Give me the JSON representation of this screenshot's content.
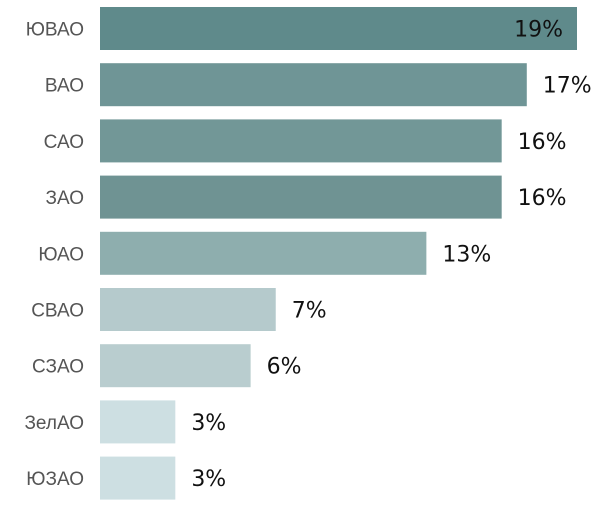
{
  "chart_data": {
    "type": "bar",
    "orientation": "horizontal",
    "categories": [
      "ЮВАО",
      "ВАО",
      "САО",
      "ЗАО",
      "ЮАО",
      "СВАО",
      "СЗАО",
      "ЗелАО",
      "ЮЗАО"
    ],
    "values": [
      19,
      17,
      16,
      16,
      13,
      7,
      6,
      3,
      3
    ],
    "value_labels": [
      "19%",
      "17%",
      "16%",
      "16%",
      "13%",
      "7%",
      "6%",
      "3%",
      "3%"
    ],
    "bar_colors": [
      "#5f8a8b",
      "#6f9596",
      "#729797",
      "#6f9393",
      "#8eaeae",
      "#b5cacc",
      "#b9cdcf",
      "#cddfe2",
      "#cddfe2"
    ],
    "xlim": [
      0,
      19
    ],
    "grid": false,
    "legend": "none"
  }
}
